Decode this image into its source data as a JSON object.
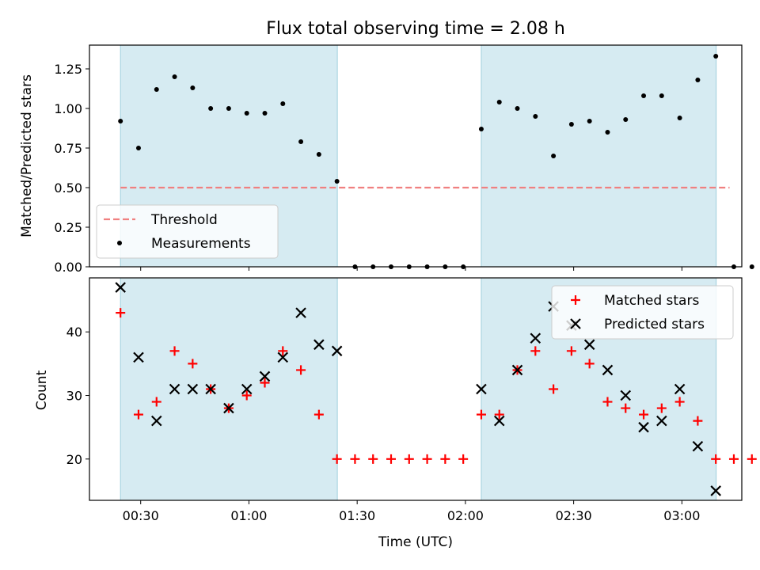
{
  "chart_data": [
    {
      "type": "scatter",
      "title": "Flux total observing time = 2.08 h",
      "xlabel": "",
      "ylabel": "Matched/Predicted stars",
      "ylim": [
        0,
        1.4
      ],
      "yticks": [
        "0.00",
        "0.25",
        "0.50",
        "0.75",
        "1.00",
        "1.25"
      ],
      "xlim_minutes": [
        15.8,
        196.6
      ],
      "grid": false,
      "legend_position": "lower-left",
      "shaded_intervals_minutes": [
        [
          24.4,
          84.5
        ],
        [
          124.4,
          189.5
        ]
      ],
      "threshold": {
        "name": "Threshold",
        "value": 0.5,
        "x_start_minutes": 24.4,
        "x_end_minutes": 193.2,
        "color": "#f08080"
      },
      "series": [
        {
          "name": "Measurements",
          "color": "#000000",
          "points": [
            [
              24.4,
              0.92
            ],
            [
              29.4,
              0.75
            ],
            [
              34.4,
              1.12
            ],
            [
              39.4,
              1.2
            ],
            [
              44.4,
              1.13
            ],
            [
              49.4,
              1.0
            ],
            [
              54.4,
              1.0
            ],
            [
              59.4,
              0.97
            ],
            [
              64.4,
              0.97
            ],
            [
              69.4,
              1.03
            ],
            [
              74.4,
              0.79
            ],
            [
              79.4,
              0.71
            ],
            [
              84.4,
              0.54
            ],
            [
              89.4,
              0
            ],
            [
              94.4,
              0
            ],
            [
              99.4,
              0
            ],
            [
              104.4,
              0
            ],
            [
              109.4,
              0
            ],
            [
              114.4,
              0
            ],
            [
              119.4,
              0
            ],
            [
              124.4,
              0.87
            ],
            [
              129.4,
              1.04
            ],
            [
              134.4,
              1.0
            ],
            [
              139.4,
              0.95
            ],
            [
              144.4,
              0.7
            ],
            [
              149.4,
              0.9
            ],
            [
              154.4,
              0.92
            ],
            [
              159.4,
              0.85
            ],
            [
              164.4,
              0.93
            ],
            [
              169.4,
              1.08
            ],
            [
              174.4,
              1.08
            ],
            [
              179.4,
              0.94
            ],
            [
              184.4,
              1.18
            ],
            [
              189.4,
              1.33
            ],
            [
              194.4,
              0
            ],
            [
              199.4,
              0
            ]
          ]
        }
      ]
    },
    {
      "type": "scatter",
      "title": "",
      "xlabel": "Time (UTC)",
      "ylabel": "Count",
      "ylim": [
        13.5,
        48.5
      ],
      "yticks": [
        "20",
        "30",
        "40"
      ],
      "xticks": [
        {
          "minutes": 30,
          "label": "00:30"
        },
        {
          "minutes": 60,
          "label": "01:00"
        },
        {
          "minutes": 90,
          "label": "01:30"
        },
        {
          "minutes": 120,
          "label": "02:00"
        },
        {
          "minutes": 150,
          "label": "02:30"
        },
        {
          "minutes": 180,
          "label": "03:00"
        }
      ],
      "xlim_minutes": [
        15.8,
        196.6
      ],
      "grid": false,
      "legend_position": "upper-right",
      "shaded_intervals_minutes": [
        [
          24.4,
          84.5
        ],
        [
          124.4,
          189.5
        ]
      ],
      "series": [
        {
          "name": "Matched stars",
          "marker": "plus",
          "color": "#ff0000",
          "points": [
            [
              24.4,
              43
            ],
            [
              29.4,
              27
            ],
            [
              34.4,
              29
            ],
            [
              39.4,
              37
            ],
            [
              44.4,
              35
            ],
            [
              49.4,
              31
            ],
            [
              54.4,
              28
            ],
            [
              59.4,
              30
            ],
            [
              64.4,
              32
            ],
            [
              69.4,
              37
            ],
            [
              74.4,
              34
            ],
            [
              79.4,
              27
            ],
            [
              84.4,
              20
            ],
            [
              89.4,
              20
            ],
            [
              94.4,
              20
            ],
            [
              99.4,
              20
            ],
            [
              104.4,
              20
            ],
            [
              109.4,
              20
            ],
            [
              114.4,
              20
            ],
            [
              119.4,
              20
            ],
            [
              124.4,
              27
            ],
            [
              129.4,
              27
            ],
            [
              134.4,
              34
            ],
            [
              139.4,
              37
            ],
            [
              144.4,
              31
            ],
            [
              149.4,
              37
            ],
            [
              154.4,
              35
            ],
            [
              159.4,
              29
            ],
            [
              164.4,
              28
            ],
            [
              169.4,
              27
            ],
            [
              174.4,
              28
            ],
            [
              179.4,
              29
            ],
            [
              184.4,
              26
            ],
            [
              189.4,
              20
            ],
            [
              194.4,
              20
            ],
            [
              199.4,
              20
            ]
          ]
        },
        {
          "name": "Predicted stars",
          "marker": "x",
          "color": "#000000",
          "points": [
            [
              24.4,
              47
            ],
            [
              29.4,
              36
            ],
            [
              34.4,
              26
            ],
            [
              39.4,
              31
            ],
            [
              44.4,
              31
            ],
            [
              49.4,
              31
            ],
            [
              54.4,
              28
            ],
            [
              59.4,
              31
            ],
            [
              64.4,
              33
            ],
            [
              69.4,
              36
            ],
            [
              74.4,
              43
            ],
            [
              79.4,
              38
            ],
            [
              84.4,
              37
            ],
            [
              124.4,
              31
            ],
            [
              129.4,
              26
            ],
            [
              134.4,
              34
            ],
            [
              139.4,
              39
            ],
            [
              144.4,
              44
            ],
            [
              149.4,
              41
            ],
            [
              154.4,
              38
            ],
            [
              159.4,
              34
            ],
            [
              164.4,
              30
            ],
            [
              169.4,
              25
            ],
            [
              174.4,
              26
            ],
            [
              179.4,
              31
            ],
            [
              184.4,
              22
            ],
            [
              189.4,
              15
            ]
          ]
        }
      ]
    }
  ]
}
